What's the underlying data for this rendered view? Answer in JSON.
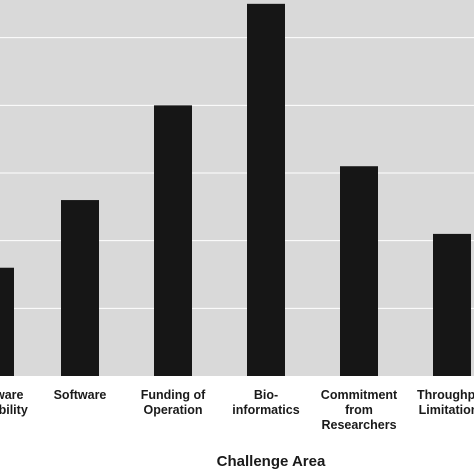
{
  "chart_data": {
    "type": "bar",
    "categories": [
      [
        "Hardware",
        "Availability"
      ],
      [
        "Software"
      ],
      [
        "Funding of",
        "Operation"
      ],
      [
        "Bio-",
        "informatics"
      ],
      [
        "Commitment",
        "from",
        "Researchers"
      ],
      [
        "Throughput",
        "Limitations"
      ]
    ],
    "values": [
      1.6,
      2.6,
      4.0,
      5.5,
      3.1,
      2.1
    ],
    "xlabel": "Challenge Area",
    "ylabel": "",
    "ylim": [
      0,
      6
    ],
    "grid": true,
    "colors": {
      "plot_background": "#d9d9d9",
      "bar": "#161616",
      "gridline": "#ffffff",
      "text": "#1a1a1a"
    }
  }
}
